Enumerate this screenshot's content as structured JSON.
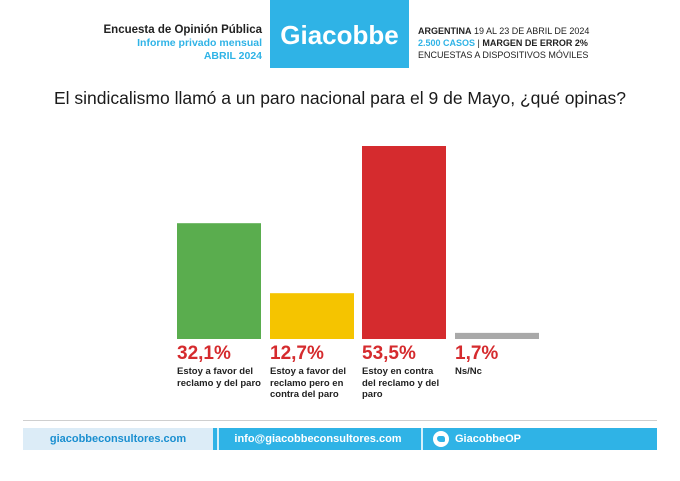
{
  "header": {
    "line1": "Encuesta de Opinión Pública",
    "line2": "Informe privado mensual",
    "line3": "ABRIL 2024",
    "logo": "Giacobbe",
    "info1_bold": "ARGENTINA",
    "info1_rest": " 19 AL 23 DE ABRIL DE 2024",
    "info2_cases": "2.500 CASOS",
    "info2_sep": " | ",
    "info2_margin": "MARGEN DE ERROR 2%",
    "info3": "ENCUESTAS A DISPOSITIVOS MÓVILES"
  },
  "question": "El sindicalismo llamó a un paro nacional para el 9 de Mayo, ¿qué opinas?",
  "colors": {
    "accent": "#2fb3e6",
    "green": "#5aad4e",
    "yellow": "#f5c400",
    "red": "#d52b2e",
    "gray": "#a9a9a9"
  },
  "chart_data": {
    "type": "bar",
    "categories": [
      "Estoy a favor del reclamo y del paro",
      "Estoy a favor del reclamo pero en contra del paro",
      "Estoy en contra del reclamo y del paro",
      "Ns/Nc"
    ],
    "values": [
      32.1,
      12.7,
      53.5,
      1.7
    ],
    "value_labels": [
      "32,1%",
      "12,7%",
      "53,5%",
      "1,7%"
    ],
    "colors": [
      "#5aad4e",
      "#f5c400",
      "#d52b2e",
      "#a9a9a9"
    ],
    "ylim": [
      0,
      53.5
    ],
    "grid": false,
    "title": "",
    "xlabel": "",
    "ylabel": ""
  },
  "labels": {
    "cat0_l1": "Estoy a favor del",
    "cat0_l2": "reclamo y del paro",
    "cat1_l1": "Estoy a favor del",
    "cat1_l2": "reclamo pero en",
    "cat1_l3": "contra del paro",
    "cat2_l1": "Estoy en contra",
    "cat2_l2": "del reclamo y del",
    "cat2_l3": "paro",
    "cat3_l1": "Ns/Nc"
  },
  "footer": {
    "web": "giacobbeconsultores.com",
    "email": "info@giacobbeconsultores.com",
    "twitter_icon": "twitter-bird-icon",
    "twitter": "GiacobbeOP"
  }
}
